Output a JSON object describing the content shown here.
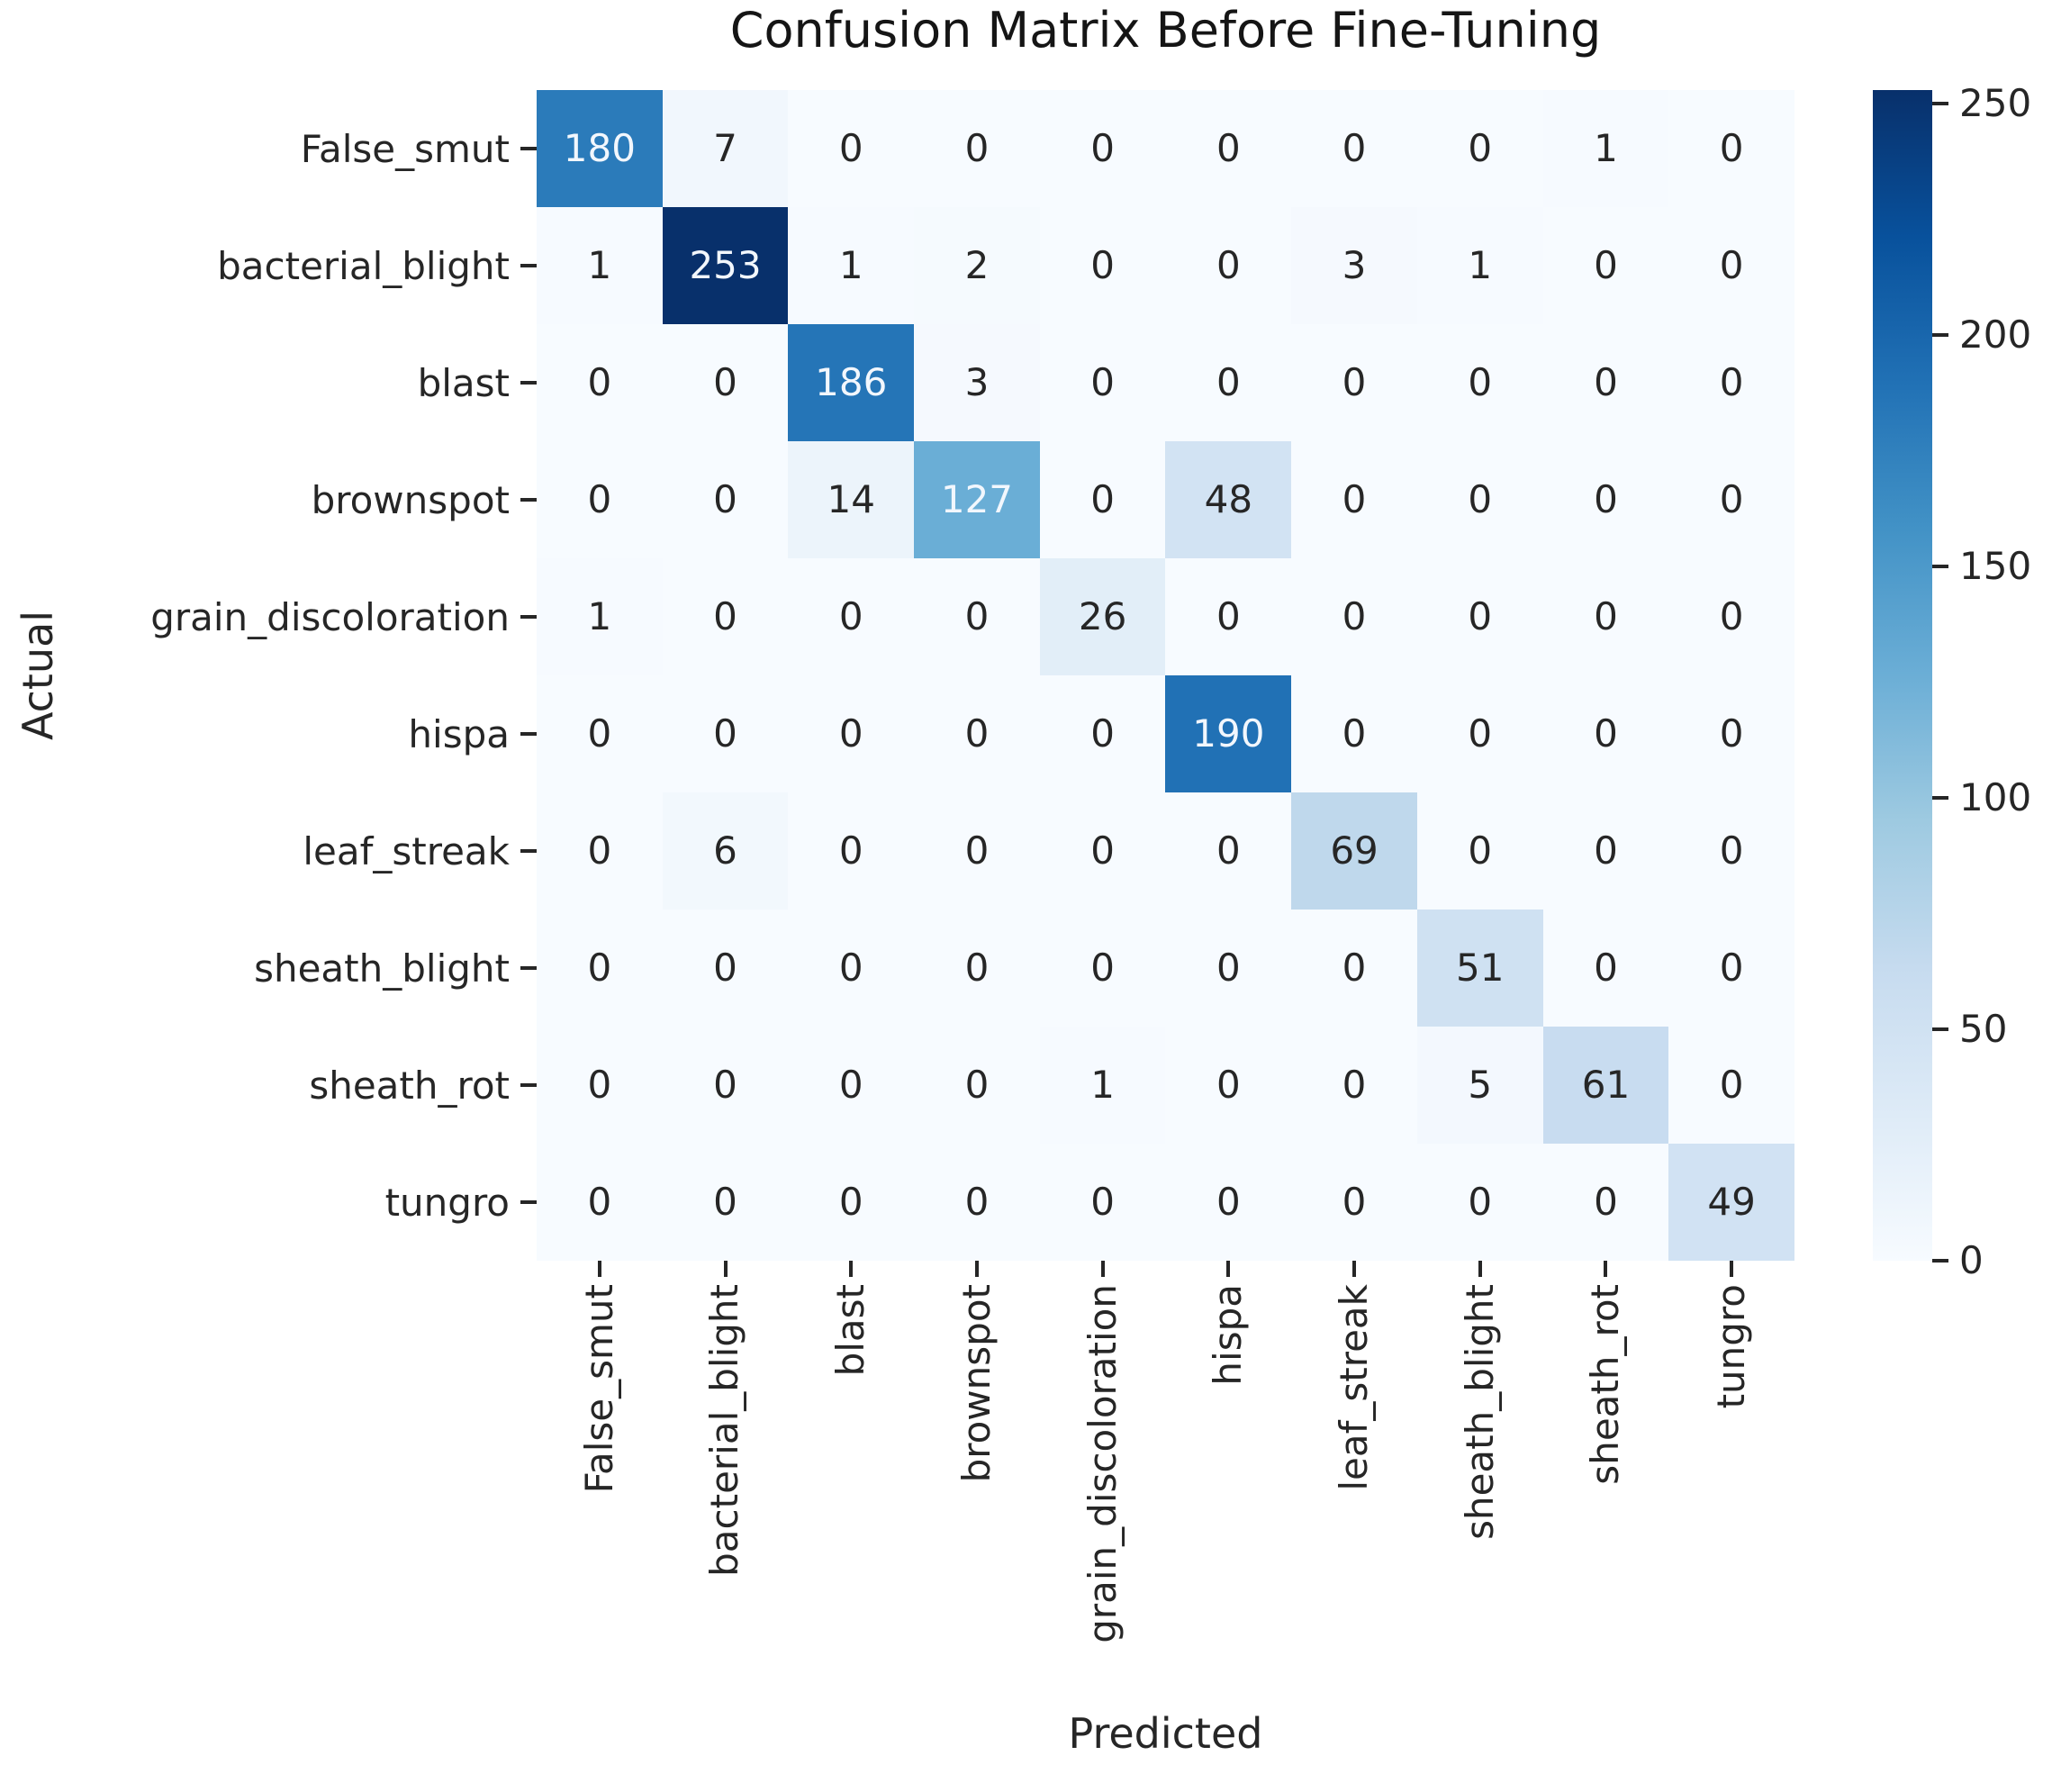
{
  "figure": {
    "title": "Confusion Matrix Before Fine-Tuning",
    "xlabel": "Predicted",
    "ylabel": "Actual"
  },
  "chart_data": {
    "type": "heatmap",
    "title": "Confusion Matrix Before Fine-Tuning",
    "xlabel": "Predicted",
    "ylabel": "Actual",
    "x_categories": [
      "False_smut",
      "bacterial_blight",
      "blast",
      "brownspot",
      "grain_discoloration",
      "hispa",
      "leaf_streak",
      "sheath_blight",
      "sheath_rot",
      "tungro"
    ],
    "y_categories": [
      "False_smut",
      "bacterial_blight",
      "blast",
      "brownspot",
      "grain_discoloration",
      "hispa",
      "leaf_streak",
      "sheath_blight",
      "sheath_rot",
      "tungro"
    ],
    "matrix": [
      [
        180,
        7,
        0,
        0,
        0,
        0,
        0,
        0,
        1,
        0
      ],
      [
        1,
        253,
        1,
        2,
        0,
        0,
        3,
        1,
        0,
        0
      ],
      [
        0,
        0,
        186,
        3,
        0,
        0,
        0,
        0,
        0,
        0
      ],
      [
        0,
        0,
        14,
        127,
        0,
        48,
        0,
        0,
        0,
        0
      ],
      [
        1,
        0,
        0,
        0,
        26,
        0,
        0,
        0,
        0,
        0
      ],
      [
        0,
        0,
        0,
        0,
        0,
        190,
        0,
        0,
        0,
        0
      ],
      [
        0,
        6,
        0,
        0,
        0,
        0,
        69,
        0,
        0,
        0
      ],
      [
        0,
        0,
        0,
        0,
        0,
        0,
        0,
        51,
        0,
        0
      ],
      [
        0,
        0,
        0,
        0,
        1,
        0,
        0,
        5,
        61,
        0
      ],
      [
        0,
        0,
        0,
        0,
        0,
        0,
        0,
        0,
        0,
        49
      ]
    ],
    "vmin": 0,
    "vmax": 253,
    "colormap": "Blues",
    "annotations": true,
    "grid": false,
    "colorbar": {
      "position": "right",
      "ticks": [
        0,
        50,
        100,
        150,
        200,
        250
      ]
    }
  },
  "colors": {
    "cmap_low": "#f7fbff",
    "cmap_high": "#08306b",
    "annotation_dark_text": "#262626",
    "annotation_light_text": "#f2f7fd",
    "tick_color": "#262626",
    "title_color": "#151515",
    "background": "#ffffff"
  }
}
